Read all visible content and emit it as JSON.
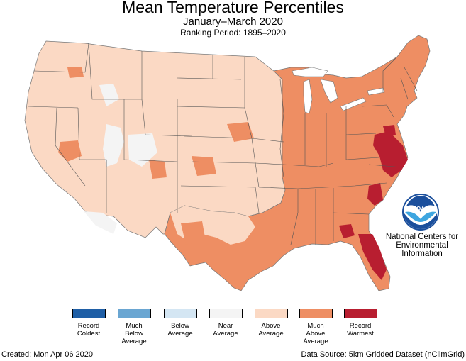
{
  "header": {
    "title": "Mean Temperature Percentiles",
    "subtitle": "January–March 2020",
    "period": "Ranking Period: 1895–2020"
  },
  "legend": {
    "items": [
      {
        "label": "Record\nColdest",
        "color": "#1f5fa6"
      },
      {
        "label": "Much\nBelow\nAverage",
        "color": "#6aa6d2"
      },
      {
        "label": "Below\nAverage",
        "color": "#d4e6f3"
      },
      {
        "label": "Near\nAverage",
        "color": "#f4f4f4"
      },
      {
        "label": "Above\nAverage",
        "color": "#fbd9c4"
      },
      {
        "label": "Much\nAbove\nAverage",
        "color": "#ee8e63"
      },
      {
        "label": "Record\nWarmest",
        "color": "#b81e30"
      }
    ]
  },
  "org": {
    "logo_text": "NOAA",
    "name": "National Centers for\nEnvironmental\nInformation"
  },
  "footer": {
    "created": "Created: Mon Apr 06 2020",
    "source": "Data Source: 5km Gridded Dataset (nClimGrid)"
  },
  "icons": {
    "logo": "noaa-logo-icon"
  }
}
